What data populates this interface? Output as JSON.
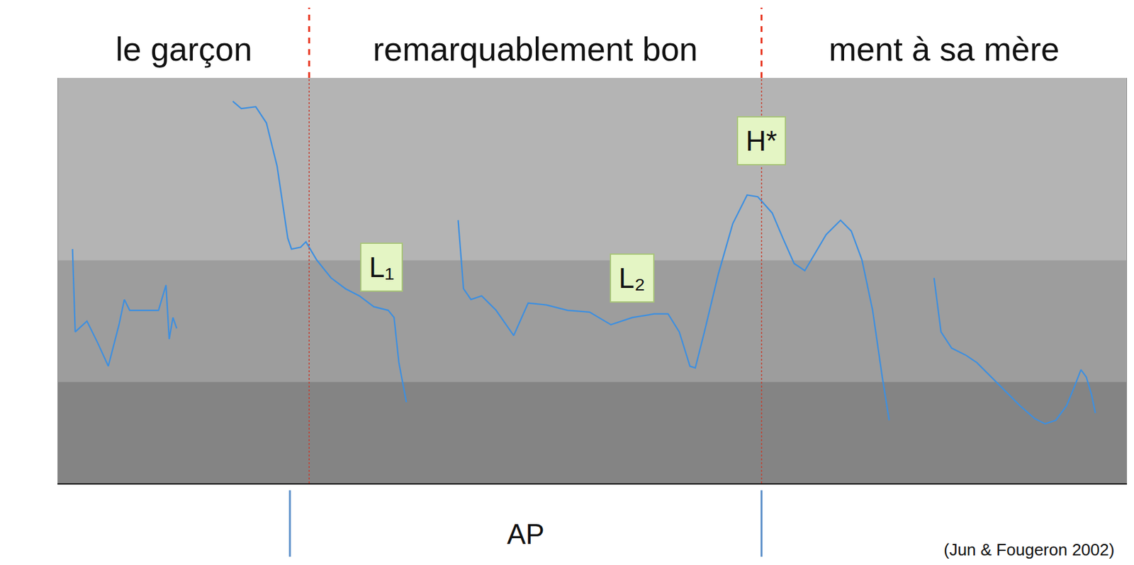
{
  "chart_data": {
    "type": "line",
    "x": [
      0.027,
      0.032,
      0.054,
      0.074,
      0.094,
      0.114,
      0.124,
      0.134,
      0.161,
      0.188,
      0.202,
      0.208,
      0.215,
      0.222,
      0.26,
      0.327,
      0.343,
      0.37,
      0.39,
      0.41,
      0.43,
      0.437,
      0.454,
      0.464,
      0.484,
      0.511,
      0.538,
      0.564,
      0.591,
      0.618,
      0.629,
      0.638,
      0.652,
      0.7,
      0.749,
      0.759,
      0.773,
      0.793,
      0.82,
      0.853,
      0.88,
      0.914,
      0.954,
      0.995,
      1.035,
      1.075,
      1.116,
      1.142,
      1.163,
      1.183,
      1.193,
      1.21,
      1.236,
      1.263,
      1.29,
      1.31,
      1.337,
      1.357,
      1.378,
      1.398,
      1.418,
      1.438,
      1.465,
      1.485,
      1.505,
      1.525,
      1.543,
      1.556,
      1.6,
      1.64,
      1.653,
      1.673,
      1.7,
      1.72,
      1.747,
      1.774,
      1.801,
      1.828,
      1.848,
      1.868,
      1.888,
      1.902,
      1.915,
      1.925,
      1.935,
      1.942
    ],
    "values": [
      205,
      159,
      165,
      153,
      140,
      163,
      177,
      171,
      171,
      171,
      185,
      155,
      167,
      161,
      null,
      287,
      283,
      284,
      275,
      251,
      211,
      205,
      206,
      209,
      199,
      189,
      183,
      179,
      173,
      171,
      167,
      142,
      120,
      null,
      221,
      183,
      177,
      179,
      171,
      157,
      175,
      174,
      171,
      170,
      163,
      167,
      169,
      169,
      159,
      140,
      139,
      159,
      191,
      219,
      235,
      234,
      225,
      211,
      197,
      193,
      203,
      213,
      221,
      215,
      199,
      171,
      134,
      110,
      null,
      189,
      159,
      150,
      146,
      142,
      134,
      126,
      118,
      111,
      108,
      110,
      118,
      128,
      138,
      134,
      124,
      114
    ],
    "color": "#3d8fe0",
    "xlim": [
      0,
      2
    ],
    "ylim": [
      75,
      300
    ],
    "tick_labels": false,
    "grid": false,
    "words": [
      {
        "text": "le garçon",
        "start": 0,
        "end": 0.47
      },
      {
        "text": "remarquablement bon",
        "start": 0.47,
        "end": 1.317
      },
      {
        "text": "ment à sa mère",
        "start": 1.317,
        "end": 2
      }
    ],
    "boundaries": [
      0.47,
      1.317
    ],
    "tones": [
      {
        "label": "L₁",
        "x": 0.605,
        "y": 195
      },
      {
        "label": "L₂",
        "x": 1.075,
        "y": 189
      },
      {
        "label": "H*",
        "x": 1.317,
        "y": 265
      }
    ],
    "phrase": {
      "label": "AP",
      "start": 0.434,
      "end": 1.317
    },
    "source": "(Jun & Fougeron 2002)"
  }
}
